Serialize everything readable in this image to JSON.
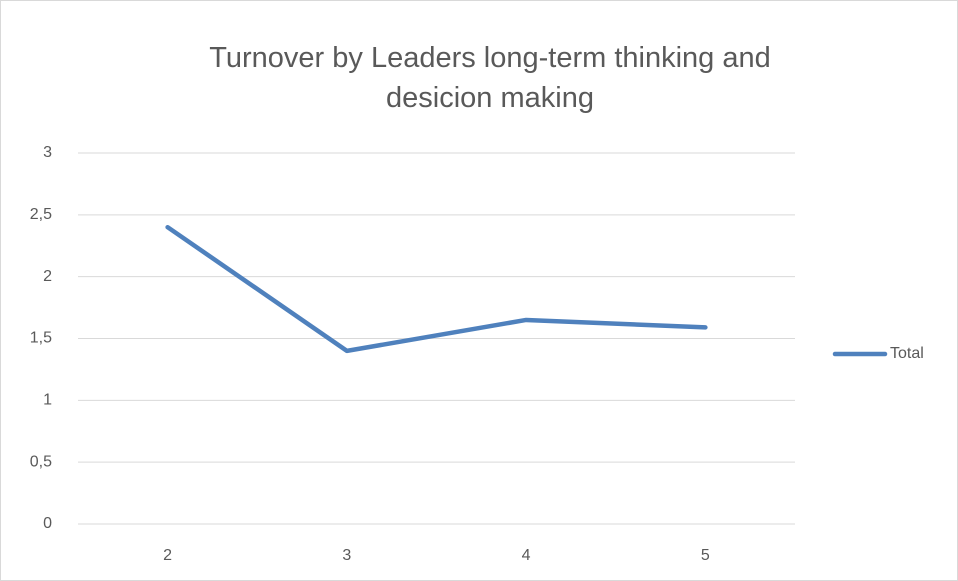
{
  "chart_data": {
    "type": "line",
    "title": "Turnover by Leaders long-term thinking and desicion making",
    "categories": [
      "2",
      "3",
      "4",
      "5"
    ],
    "series": [
      {
        "name": "Total",
        "color": "#4f81bd",
        "values": [
          2.4,
          1.4,
          1.65,
          1.59
        ]
      }
    ],
    "ylim": [
      0,
      3
    ],
    "yticks": [
      0,
      {
        "value": 0.5,
        "label": "0,5"
      },
      1,
      {
        "value": 1.5,
        "label": "1,5"
      },
      2,
      {
        "value": 2.5,
        "label": "2,5"
      },
      3
    ],
    "grid": true,
    "legend": "right"
  }
}
